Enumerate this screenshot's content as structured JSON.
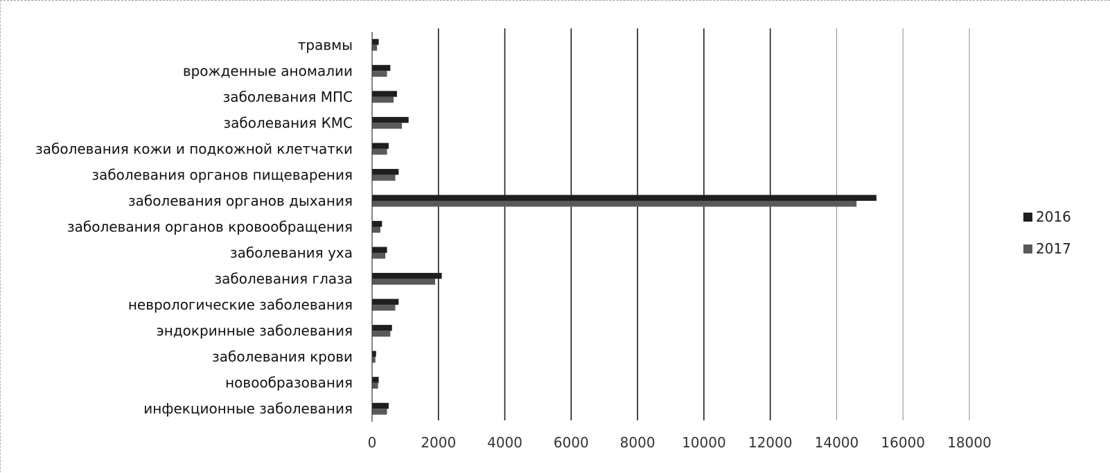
{
  "chart_data": {
    "type": "bar",
    "orientation": "horizontal",
    "categories": [
      "травмы",
      "врожденные аномалии",
      "заболевания МПС",
      "заболевания КМС",
      "заболевания кожи и подкожной клетчатки",
      "заболевания органов пищеварения",
      "заболевания органов дыхания",
      "заболевания органов кровообращения",
      "заболевания уха",
      "заболевания глаза",
      "неврологические заболевания",
      "эндокринные заболевания",
      "заболевания крови",
      "новообразования",
      "инфекционные заболевания"
    ],
    "series": [
      {
        "name": "2016",
        "color": "#1e1e1e",
        "values": [
          200,
          550,
          750,
          1100,
          500,
          800,
          15200,
          300,
          450,
          2100,
          800,
          600,
          120,
          200,
          500
        ]
      },
      {
        "name": "2017",
        "color": "#5a5a5a",
        "values": [
          150,
          450,
          650,
          900,
          450,
          700,
          14600,
          250,
          400,
          1900,
          700,
          550,
          100,
          180,
          450
        ]
      }
    ],
    "xlim": [
      0,
      18000
    ],
    "xticks": [
      "0",
      "2000",
      "4000",
      "6000",
      "8000",
      "10000",
      "12000",
      "14000",
      "16000",
      "18000"
    ],
    "grid": "vertical",
    "legend_position": "right"
  }
}
